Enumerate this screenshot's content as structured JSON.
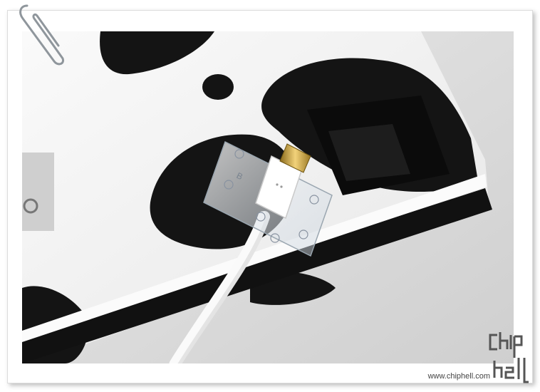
{
  "photo": {
    "subject": "white micro-USB cable with gold connector in clear plastic holder on cow-pattern box",
    "colors": {
      "cow_black": "#141414",
      "cow_white": "#f2f2f2",
      "gold": "#c9a33b",
      "cable": "#f7f7f7",
      "table": "#d9d9d9"
    }
  },
  "watermark": {
    "url": "www.chiphell.com",
    "logo_text": "chip hell"
  },
  "decor": {
    "paperclip_icon": "paperclip-icon"
  }
}
